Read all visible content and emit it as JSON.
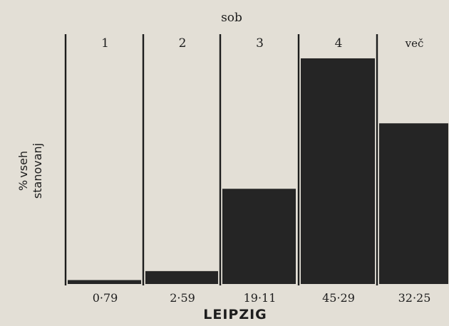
{
  "chart_data": {
    "type": "bar",
    "title": "LEIPZIG",
    "header": "sob",
    "ylabel": "% vseh stanovanj",
    "ylabel_lines": [
      "% vseh",
      "stanovanj"
    ],
    "categories": [
      "1",
      "2",
      "3",
      "4",
      "več"
    ],
    "values": [
      0.79,
      2.59,
      19.11,
      45.29,
      32.25
    ],
    "value_labels": [
      "0·79",
      "2·59",
      "19·11",
      "45·29",
      "32·25"
    ],
    "ylim": [
      0,
      50
    ],
    "grid": false,
    "legend": "none",
    "bar_color": "#252525"
  }
}
